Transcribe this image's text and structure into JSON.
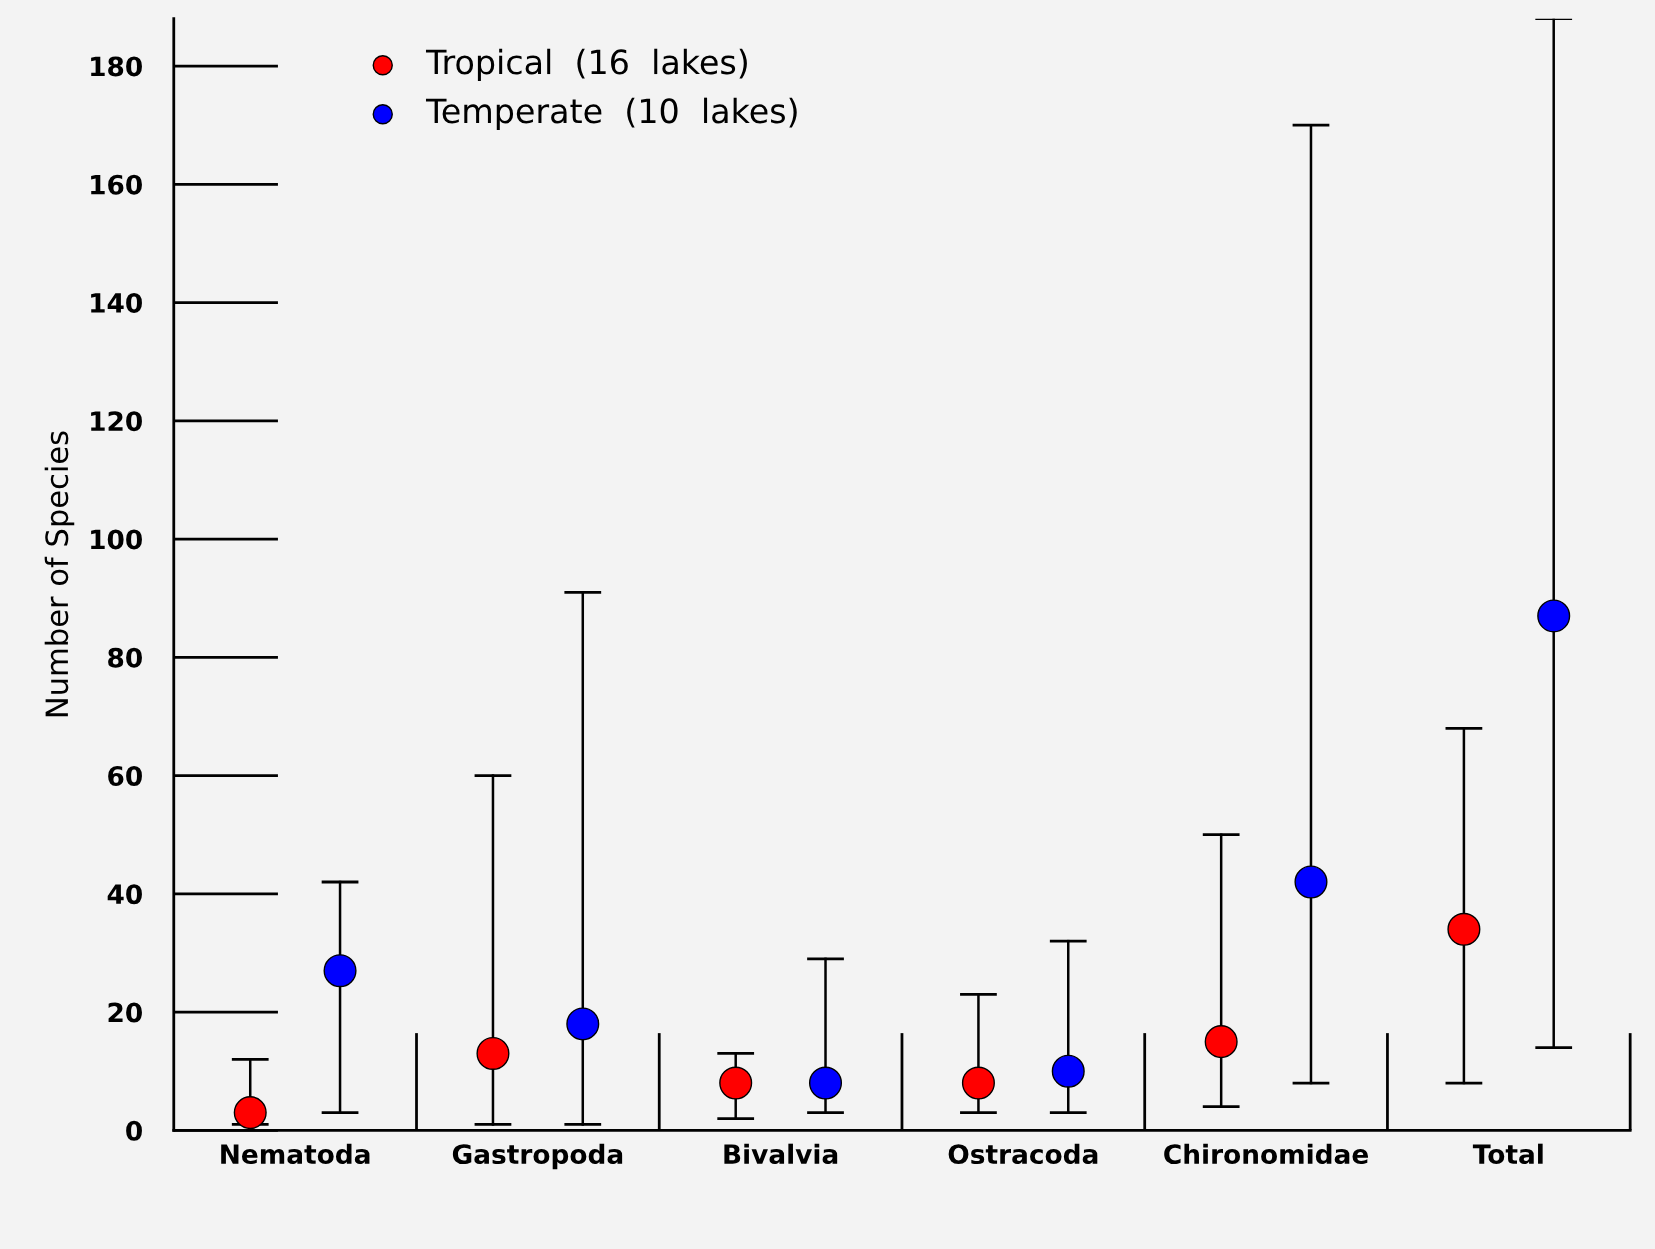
{
  "chart_data": {
    "type": "scatter",
    "ylabel": "Number of Species",
    "categories": [
      "Nematoda",
      "Gastropoda",
      "Bivalvia",
      "Ostracoda",
      "Chironomidae",
      "Total"
    ],
    "series": [
      {
        "name": "Tropical  (16  lakes)",
        "color": "#ff0000",
        "values": [
          3,
          13,
          8,
          8,
          15,
          34
        ],
        "errors": [
          [
            1,
            12
          ],
          [
            1,
            60
          ],
          [
            2,
            13
          ],
          [
            3,
            23
          ],
          [
            4,
            50
          ],
          [
            8,
            68
          ]
        ]
      },
      {
        "name": "Temperate  (10  lakes)",
        "color": "#0000ff",
        "values": [
          27,
          18,
          8,
          10,
          42,
          87
        ],
        "errors": [
          [
            3,
            42
          ],
          [
            1,
            91
          ],
          [
            3,
            29
          ],
          [
            3,
            32
          ],
          [
            8,
            170
          ],
          [
            14,
            188
          ]
        ]
      }
    ],
    "ylim": [
      0,
      188
    ],
    "yticks": [
      0,
      20,
      40,
      60,
      80,
      100,
      120,
      140,
      160,
      180
    ],
    "grid": false,
    "legend": "top left",
    "marker": "circle"
  }
}
